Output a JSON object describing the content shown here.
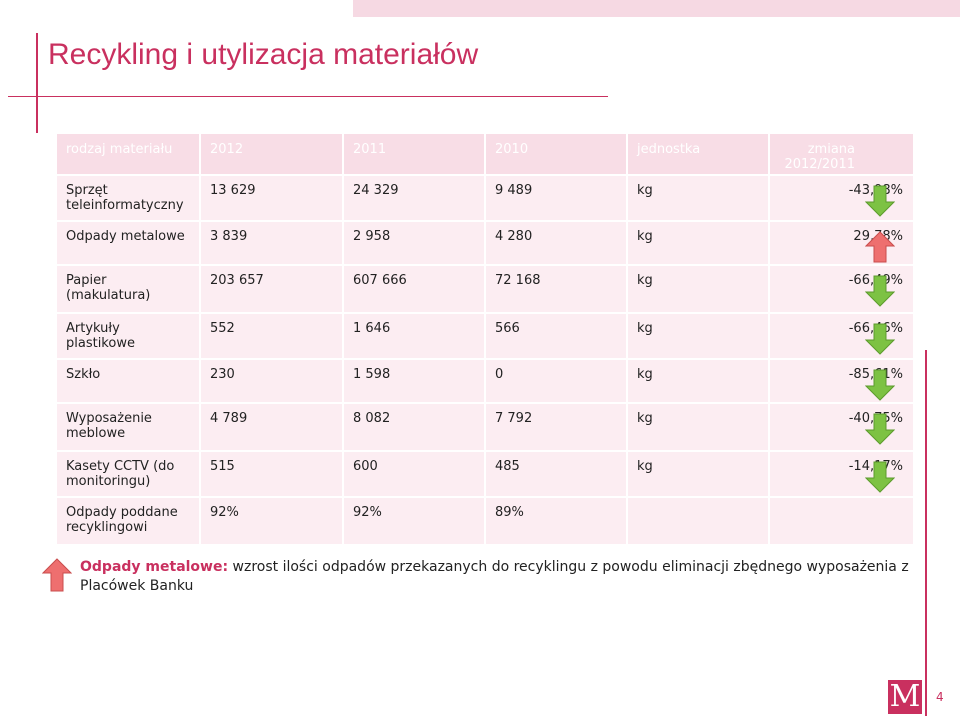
{
  "title": "Recykling i utylizacja materiałów",
  "table": {
    "headers": [
      "rodzaj materiału",
      "2012",
      "2011",
      "2010",
      "jednostka",
      "zmiana 2012/2011"
    ],
    "rows": [
      {
        "material": "Sprzęt teleinformatyczny",
        "y2012": "13 629",
        "y2011": "24 329",
        "y2010": "9 489",
        "unit": "kg",
        "change": "-43,98%",
        "trend": "down"
      },
      {
        "material": "Odpady metalowe",
        "y2012": "3 839",
        "y2011": "2 958",
        "y2010": "4 280",
        "unit": "kg",
        "change": "29,78%",
        "trend": "up"
      },
      {
        "material": "Papier (makulatura)",
        "y2012": "203 657",
        "y2011": "607 666",
        "y2010": "72 168",
        "unit": "kg",
        "change": "-66,49%",
        "trend": "down"
      },
      {
        "material": "Artykuły plastikowe",
        "y2012": "552",
        "y2011": "1 646",
        "y2010": "566",
        "unit": "kg",
        "change": "-66,46%",
        "trend": "down"
      },
      {
        "material": "Szkło",
        "y2012": "230",
        "y2011": "1 598",
        "y2010": "0",
        "unit": "kg",
        "change": "-85,61%",
        "trend": "down"
      },
      {
        "material": "Wyposażenie meblowe",
        "y2012": "4 789",
        "y2011": "8 082",
        "y2010": "7 792",
        "unit": "kg",
        "change": "-40,75%",
        "trend": "down"
      },
      {
        "material": "Kasety CCTV (do monitoringu)",
        "y2012": "515",
        "y2011": "600",
        "y2010": "485",
        "unit": "kg",
        "change": "-14,17%",
        "trend": "down"
      },
      {
        "material": "Odpady poddane recyklingowi",
        "y2012": "92%",
        "y2011": "92%",
        "y2010": "89%",
        "unit": "",
        "change": "",
        "trend": ""
      }
    ]
  },
  "note": {
    "label": "Odpady metalowe:",
    "text": " wzrost ilości odpadów przekazanych do recyklingu z powodu eliminacji zbędnego wyposażenia z Placówek Banku"
  },
  "logo": "M",
  "page_number": "4",
  "colors": {
    "accent": "#c9305f",
    "header_bg": "#f8dde6",
    "cell_bg": "#fcedf2",
    "arrow_down": "#7dc243",
    "arrow_up": "#ee6f6f"
  }
}
